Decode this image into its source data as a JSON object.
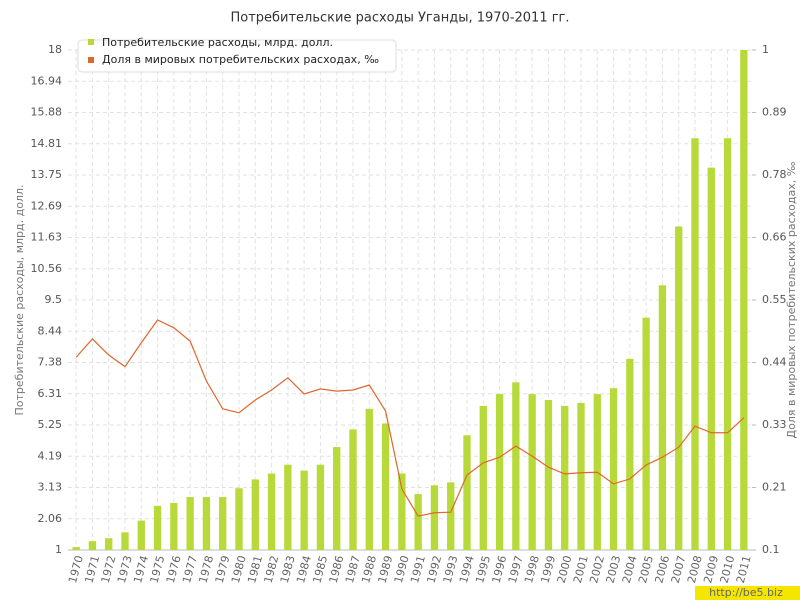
{
  "chart_data": {
    "type": "bar",
    "title": "Потребительские расходы Уганды, 1970-2011 гг.",
    "y_label": "Потребительские расходы, млрд. долл.",
    "y2_label": "Доля в мировых потребительских расходах, ‰",
    "watermark": "http://be5.biz",
    "categories": [
      "1970",
      "1971",
      "1972",
      "1973",
      "1974",
      "1975",
      "1976",
      "1977",
      "1978",
      "1979",
      "1980",
      "1981",
      "1982",
      "1983",
      "1984",
      "1985",
      "1986",
      "1987",
      "1988",
      "1989",
      "1990",
      "1991",
      "1992",
      "1993",
      "1994",
      "1995",
      "1996",
      "1997",
      "1998",
      "1999",
      "2000",
      "2001",
      "2002",
      "2003",
      "2004",
      "2005",
      "2006",
      "2007",
      "2008",
      "2009",
      "2010",
      "2011"
    ],
    "series": [
      {
        "name": "Потребительские расходы, млрд. долл.",
        "type": "bar",
        "color": "#b8d93a",
        "values": [
          1.1,
          1.3,
          1.4,
          1.6,
          2.0,
          2.5,
          2.6,
          2.8,
          2.8,
          2.8,
          3.1,
          3.4,
          3.6,
          3.9,
          3.7,
          3.9,
          4.5,
          5.1,
          5.8,
          5.3,
          3.6,
          2.9,
          3.2,
          3.3,
          4.9,
          5.9,
          6.3,
          6.7,
          6.3,
          6.1,
          5.9,
          6.0,
          6.3,
          6.5,
          7.5,
          8.9,
          10.0,
          12.0,
          15.0,
          14.0,
          15.0,
          18.0
        ]
      },
      {
        "name": "Доля в мировых потребительских расходах, ‰",
        "type": "line",
        "axis": "y2",
        "color": "#e0672c",
        "values": [
          0.447,
          0.48,
          0.451,
          0.43,
          0.473,
          0.514,
          0.5,
          0.476,
          0.404,
          0.354,
          0.347,
          0.37,
          0.388,
          0.41,
          0.381,
          0.39,
          0.386,
          0.388,
          0.397,
          0.35,
          0.21,
          0.161,
          0.167,
          0.168,
          0.235,
          0.257,
          0.267,
          0.287,
          0.269,
          0.249,
          0.237,
          0.239,
          0.24,
          0.219,
          0.228,
          0.253,
          0.267,
          0.285,
          0.323,
          0.311,
          0.311,
          0.338
        ]
      }
    ],
    "ylim": [
      1,
      18
    ],
    "yticks": [
      1,
      {
        "value": 2.0625,
        "label": "2.06"
      },
      {
        "value": 3.125,
        "label": "3.13"
      },
      {
        "value": 4.1875,
        "label": "4.19"
      },
      5.25,
      {
        "value": 6.3125,
        "label": "6.31"
      },
      {
        "value": 7.375,
        "label": "7.38"
      },
      {
        "value": 8.4375,
        "label": "8.44"
      },
      9.5,
      {
        "value": 10.5625,
        "label": "10.56"
      },
      {
        "value": 11.625,
        "label": "11.63"
      },
      {
        "value": 12.6875,
        "label": "12.69"
      },
      13.75,
      {
        "value": 14.8125,
        "label": "14.81"
      },
      {
        "value": 15.875,
        "label": "15.88"
      },
      {
        "value": 16.9375,
        "label": "16.94"
      },
      18
    ],
    "y2lim": [
      0.1,
      1
    ],
    "y2ticks": [
      0.1,
      {
        "value": 0.2125,
        "label": "0.21"
      },
      {
        "value": 0.325,
        "label": "0.33"
      },
      {
        "value": 0.4375,
        "label": "0.44"
      },
      0.55,
      {
        "value": 0.6625,
        "label": "0.66"
      },
      {
        "value": 0.775,
        "label": "0.78"
      },
      {
        "value": 0.8875,
        "label": "0.89"
      },
      1
    ],
    "grid": true
  }
}
